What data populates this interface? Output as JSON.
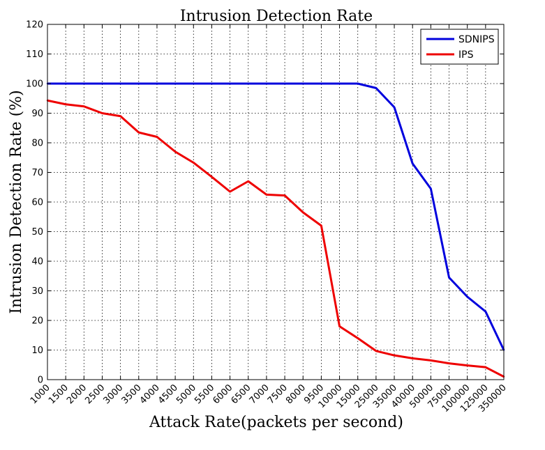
{
  "chart_data": {
    "type": "line",
    "title": "Intrusion Detection Rate",
    "xlabel": "Attack Rate(packets per second)",
    "ylabel": "Intrusion Detection Rate (%)",
    "categories": [
      "1000",
      "1500",
      "2000",
      "2500",
      "3000",
      "3500",
      "4000",
      "4500",
      "5000",
      "5500",
      "6000",
      "6500",
      "7000",
      "7500",
      "8000",
      "9500",
      "10000",
      "15000",
      "25000",
      "35000",
      "40000",
      "50000",
      "75000",
      "100000",
      "125000",
      "350000"
    ],
    "ylim": [
      0,
      120
    ],
    "yticks": [
      "0",
      "10",
      "20",
      "30",
      "40",
      "50",
      "60",
      "70",
      "80",
      "90",
      "100",
      "110",
      "120"
    ],
    "grid": true,
    "legend_position": "top-right",
    "series": [
      {
        "name": "SDNIPS",
        "color": "#0000dd",
        "values": [
          100,
          100,
          100,
          100,
          100,
          100,
          100,
          100,
          100,
          100,
          100,
          100,
          100,
          100,
          100,
          100,
          100,
          100,
          98.5,
          92,
          73,
          64.5,
          34.5,
          28,
          23,
          10
        ]
      },
      {
        "name": "IPS",
        "color": "#ee0000",
        "values": [
          94.3,
          93,
          92.3,
          90,
          89,
          83.5,
          82,
          77,
          73.3,
          68.5,
          63.5,
          67,
          62.5,
          62.2,
          56.5,
          52,
          18,
          14,
          9.7,
          8.2,
          7.2,
          6.5,
          5.5,
          4.8,
          4.2,
          1
        ]
      }
    ]
  }
}
